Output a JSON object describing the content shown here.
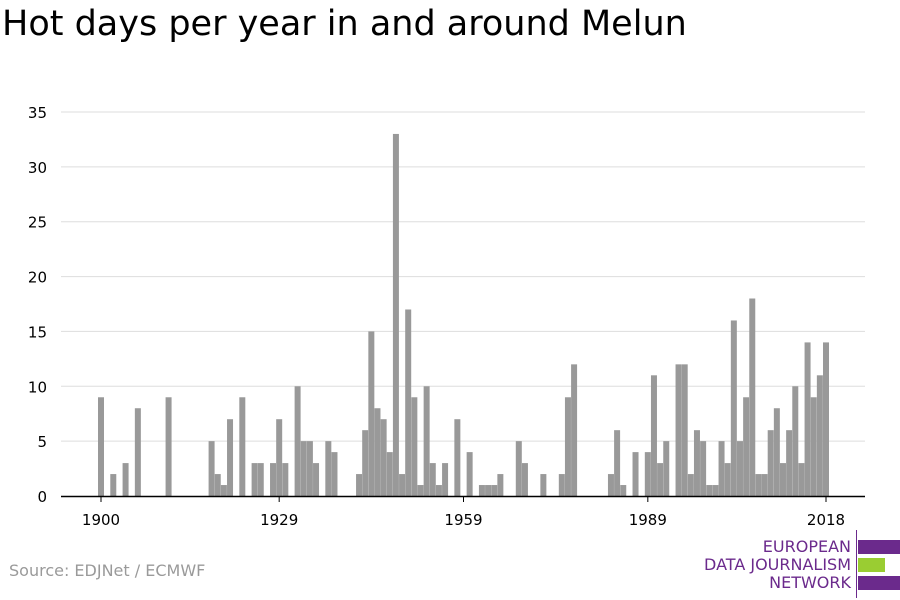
{
  "title": "Hot days per year in and around Melun",
  "source": "Source: EDJNet / ECMWF",
  "logo": {
    "lines": [
      "EUROPEAN",
      "DATA JOURNALISM",
      "NETWORK"
    ],
    "colors": [
      "#6b2a8c",
      "#9acd32",
      "#6b2a8c"
    ]
  },
  "colors": {
    "bar": "#999999",
    "grid": "#dddddd",
    "axis": "#000000"
  },
  "chart_data": {
    "type": "bar",
    "title": "Hot days per year in and around Melun",
    "xlabel": "",
    "ylabel": "",
    "ylim": [
      0,
      35
    ],
    "yticks": [
      0,
      5,
      10,
      15,
      20,
      25,
      30,
      35
    ],
    "xticks": [
      1900,
      1929,
      1959,
      1989,
      2018
    ],
    "xlim": [
      1894,
      2024
    ],
    "grid": true,
    "legend": "none",
    "categories": [
      1900,
      1902,
      1904,
      1906,
      1911,
      1918,
      1919,
      1920,
      1921,
      1923,
      1925,
      1926,
      1928,
      1929,
      1930,
      1932,
      1933,
      1934,
      1935,
      1937,
      1938,
      1942,
      1943,
      1944,
      1945,
      1946,
      1947,
      1948,
      1949,
      1950,
      1951,
      1952,
      1953,
      1954,
      1955,
      1956,
      1958,
      1960,
      1962,
      1963,
      1964,
      1965,
      1968,
      1969,
      1972,
      1975,
      1976,
      1977,
      1983,
      1984,
      1985,
      1987,
      1989,
      1990,
      1991,
      1992,
      1994,
      1995,
      1996,
      1997,
      1998,
      1999,
      2000,
      2001,
      2002,
      2003,
      2004,
      2005,
      2006,
      2007,
      2008,
      2009,
      2010,
      2011,
      2012,
      2013,
      2014,
      2015,
      2016,
      2017,
      2018
    ],
    "values": [
      9,
      2,
      3,
      8,
      9,
      5,
      2,
      1,
      7,
      9,
      3,
      3,
      3,
      7,
      3,
      10,
      5,
      5,
      3,
      5,
      4,
      2,
      6,
      15,
      8,
      7,
      4,
      33,
      2,
      17,
      9,
      1,
      10,
      3,
      1,
      3,
      7,
      4,
      1,
      1,
      1,
      2,
      5,
      3,
      2,
      2,
      9,
      12,
      2,
      6,
      1,
      4,
      4,
      11,
      3,
      5,
      12,
      12,
      2,
      6,
      5,
      1,
      1,
      5,
      3,
      16,
      5,
      9,
      18,
      2,
      2,
      6,
      8,
      3,
      6,
      10,
      3,
      14,
      9,
      11,
      14
    ]
  }
}
